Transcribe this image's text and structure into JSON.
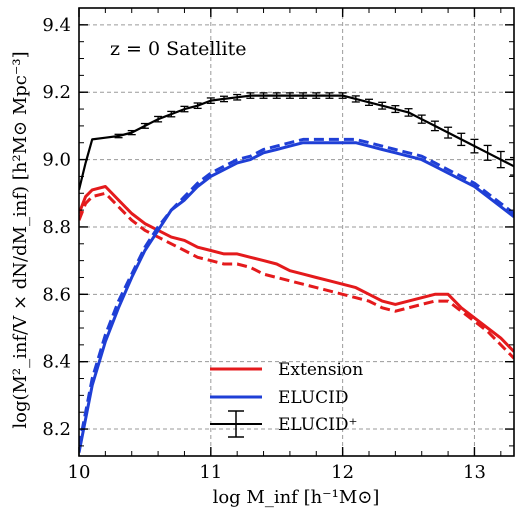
{
  "chart_data": {
    "type": "line",
    "annotation": "z = 0  Satellite",
    "xlabel": "log M_inf [h⁻¹M⊙]",
    "ylabel": "log(M²_inf/V × dN/dM_inf)  [h²M⊙ Mpc⁻³]",
    "xlim": [
      10.0,
      13.3
    ],
    "ylim": [
      8.12,
      9.45
    ],
    "xticks": [
      10,
      11,
      12,
      13
    ],
    "yticks": [
      8.2,
      8.4,
      8.6,
      8.8,
      9.0,
      9.2,
      9.4
    ],
    "xtick_labels": [
      "10",
      "11",
      "12",
      "13"
    ],
    "ytick_labels": [
      "8.2",
      "8.4",
      "8.6",
      "8.8",
      "9.0",
      "9.2",
      "9.4"
    ],
    "grid": true,
    "legend_position": "lower-center",
    "series": [
      {
        "name": "Extension",
        "color": "#e41a1c",
        "style": "solid",
        "x": [
          10.0,
          10.05,
          10.1,
          10.2,
          10.3,
          10.4,
          10.5,
          10.6,
          10.7,
          10.8,
          10.9,
          11.0,
          11.1,
          11.2,
          11.3,
          11.4,
          11.5,
          11.6,
          11.7,
          11.8,
          11.9,
          12.0,
          12.1,
          12.2,
          12.3,
          12.4,
          12.5,
          12.6,
          12.7,
          12.8,
          12.9,
          13.0,
          13.1,
          13.2,
          13.3
        ],
        "y": [
          8.84,
          8.89,
          8.91,
          8.92,
          8.88,
          8.84,
          8.81,
          8.79,
          8.77,
          8.76,
          8.74,
          8.73,
          8.72,
          8.72,
          8.71,
          8.7,
          8.69,
          8.67,
          8.66,
          8.65,
          8.64,
          8.63,
          8.62,
          8.6,
          8.58,
          8.57,
          8.58,
          8.59,
          8.6,
          8.6,
          8.56,
          8.53,
          8.5,
          8.47,
          8.43
        ]
      },
      {
        "name": "",
        "color": "#e41a1c",
        "style": "dashed",
        "x": [
          10.0,
          10.05,
          10.1,
          10.2,
          10.3,
          10.4,
          10.5,
          10.6,
          10.7,
          10.8,
          10.9,
          11.0,
          11.1,
          11.2,
          11.3,
          11.4,
          11.5,
          11.6,
          11.7,
          11.8,
          11.9,
          12.0,
          12.1,
          12.2,
          12.3,
          12.4,
          12.5,
          12.6,
          12.7,
          12.8,
          12.9,
          13.0,
          13.1,
          13.2,
          13.3
        ],
        "y": [
          8.82,
          8.87,
          8.89,
          8.9,
          8.86,
          8.82,
          8.79,
          8.77,
          8.75,
          8.73,
          8.71,
          8.7,
          8.69,
          8.69,
          8.68,
          8.66,
          8.65,
          8.64,
          8.63,
          8.62,
          8.61,
          8.6,
          8.59,
          8.58,
          8.56,
          8.55,
          8.56,
          8.57,
          8.58,
          8.58,
          8.55,
          8.52,
          8.49,
          8.45,
          8.41
        ]
      },
      {
        "name": "ELUCID",
        "color": "#1f3fd6",
        "style": "solid",
        "x": [
          10.0,
          10.1,
          10.2,
          10.3,
          10.4,
          10.5,
          10.6,
          10.7,
          10.8,
          10.9,
          11.0,
          11.1,
          11.2,
          11.3,
          11.4,
          11.5,
          11.6,
          11.7,
          11.8,
          11.9,
          12.0,
          12.1,
          12.2,
          12.3,
          12.4,
          12.5,
          12.6,
          12.7,
          12.8,
          12.9,
          13.0,
          13.1,
          13.2,
          13.3
        ],
        "y": [
          8.13,
          8.33,
          8.46,
          8.56,
          8.65,
          8.73,
          8.79,
          8.85,
          8.88,
          8.92,
          8.95,
          8.97,
          8.99,
          9.0,
          9.02,
          9.03,
          9.04,
          9.05,
          9.05,
          9.05,
          9.05,
          9.05,
          9.04,
          9.03,
          9.02,
          9.01,
          9.0,
          8.98,
          8.96,
          8.94,
          8.92,
          8.89,
          8.86,
          8.83
        ]
      },
      {
        "name": "",
        "color": "#1f3fd6",
        "style": "dashed",
        "x": [
          10.0,
          10.1,
          10.2,
          10.3,
          10.4,
          10.5,
          10.6,
          10.7,
          10.8,
          10.9,
          11.0,
          11.1,
          11.2,
          11.3,
          11.4,
          11.5,
          11.6,
          11.7,
          11.8,
          11.9,
          12.0,
          12.1,
          12.2,
          12.3,
          12.4,
          12.5,
          12.6,
          12.7,
          12.8,
          12.9,
          13.0,
          13.1,
          13.2,
          13.3
        ],
        "y": [
          8.15,
          8.35,
          8.48,
          8.58,
          8.66,
          8.74,
          8.8,
          8.85,
          8.89,
          8.93,
          8.96,
          8.98,
          9.0,
          9.01,
          9.03,
          9.04,
          9.05,
          9.06,
          9.06,
          9.06,
          9.06,
          9.06,
          9.05,
          9.04,
          9.03,
          9.02,
          9.01,
          8.99,
          8.97,
          8.95,
          8.93,
          8.9,
          8.87,
          8.84
        ]
      },
      {
        "name": "ELUCID⁺",
        "color": "#000000",
        "style": "solid-errorbars",
        "x": [
          10.0,
          10.05,
          10.1,
          10.2,
          10.3,
          10.4,
          10.5,
          10.6,
          10.7,
          10.8,
          10.9,
          11.0,
          11.1,
          11.2,
          11.3,
          11.4,
          11.5,
          11.6,
          11.7,
          11.8,
          11.9,
          12.0,
          12.1,
          12.2,
          12.3,
          12.4,
          12.5,
          12.6,
          12.7,
          12.8,
          12.9,
          13.0,
          13.1,
          13.2,
          13.3
        ],
        "y": [
          8.91,
          8.99,
          9.06,
          9.065,
          9.07,
          9.08,
          9.1,
          9.12,
          9.135,
          9.15,
          9.16,
          9.175,
          9.18,
          9.185,
          9.19,
          9.19,
          9.19,
          9.19,
          9.19,
          9.19,
          9.19,
          9.19,
          9.18,
          9.17,
          9.16,
          9.15,
          9.14,
          9.12,
          9.1,
          9.08,
          9.06,
          9.04,
          9.02,
          9.0,
          8.98
        ],
        "yerr": [
          0.0,
          0.0,
          0.0,
          0.0,
          0.005,
          0.006,
          0.007,
          0.008,
          0.008,
          0.008,
          0.008,
          0.008,
          0.008,
          0.008,
          0.008,
          0.008,
          0.008,
          0.008,
          0.008,
          0.008,
          0.008,
          0.008,
          0.009,
          0.009,
          0.01,
          0.01,
          0.011,
          0.012,
          0.014,
          0.016,
          0.018,
          0.02,
          0.022,
          0.024,
          0.026
        ]
      }
    ]
  }
}
